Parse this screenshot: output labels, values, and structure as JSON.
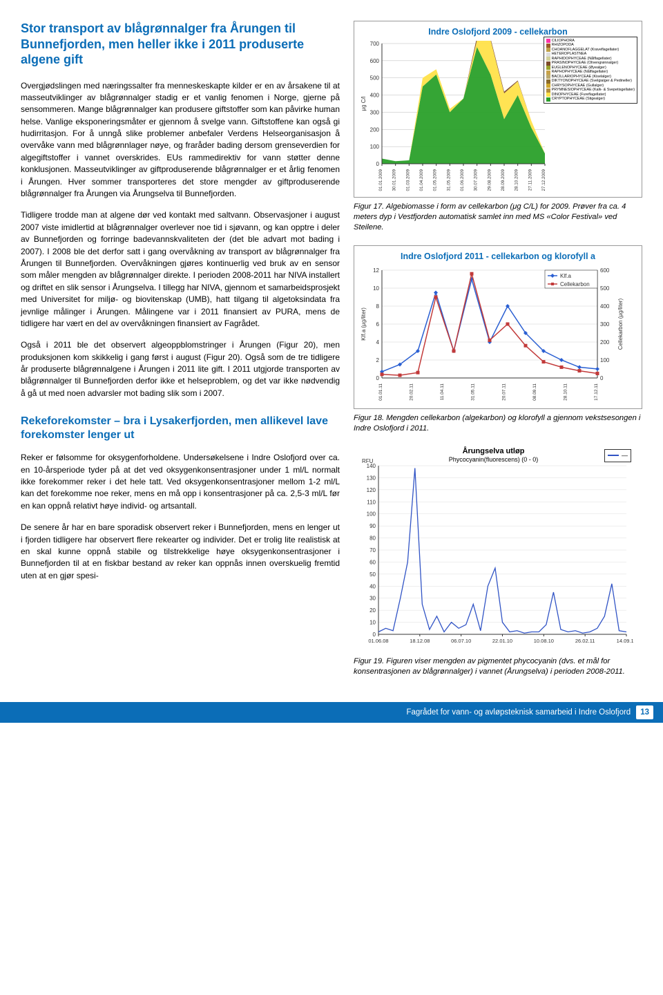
{
  "header": {
    "title": "Stor transport av blågrønnalger fra Årungen til Bunnefjorden, men heller ikke i 2011 produserte algene gift"
  },
  "paragraphs": {
    "p1": "Overgjødslingen med næringssalter fra menneskeskapte kilder er en av årsakene til at masseutviklinger av blågrønnalger stadig er et vanlig fenomen i Norge, gjerne på sensommeren. Mange blågrønnalger kan produsere giftstoffer som kan påvirke human helse. Vanlige eksponeringsmåter er gjennom å svelge vann. Giftstoffene kan også gi hudirritasjon. For å unngå slike problemer anbefaler Verdens Helseorganisasjon å overvåke vann med blågrønnlager nøye, og fraråder bading dersom grenseverdien for algegiftstoffer i vannet overskrides. EUs rammedirektiv for vann støtter denne konklusjonen. Masseutviklinger av giftproduserende blågrønnalger er et årlig fenomen i Årungen. Hver sommer transporteres det store mengder av giftproduserende blågrønnalger fra Årungen via Årungselva til Bunnefjorden.",
    "p2": "Tidligere trodde man at algene dør ved kontakt med saltvann. Observasjoner i august 2007 viste imidlertid at blågrønnalger overlever noe tid i sjøvann, og kan opptre i deler av Bunnefjorden og forringe badevannskvaliteten der (det ble advart mot bading i 2007). I 2008 ble det derfor satt i gang overvåkning av transport av blågrønnalger fra Årungen til Bunnefjorden. Overvåkningen gjøres kontinuerlig ved bruk av en sensor som måler mengden av blågrønnalger direkte. I perioden 2008-2011 har NIVA installert og driftet en slik sensor i Årungselva. I tillegg har NIVA, gjennom et samarbeidsprosjekt med Universitet for miljø- og biovitenskap (UMB), hatt tilgang til algetoksindata fra jevnlige målinger i Årungen. Målingene var i 2011 finansiert av PURA, mens de tidligere har vært en del av overvåkningen finansiert av Fagrådet.",
    "p3": "Også i 2011 ble det observert algeoppblomstringer i Årungen (Figur 20), men produksjonen kom skikkelig i gang først i august (Figur 20). Også som de tre tidligere år produserte blågrønnalgene i Årungen i 2011 lite gift. I 2011 utgjorde transporten av blågrønnalger til Bunnefjorden derfor ikke et helseproblem, og det var ikke nødvendig å gå ut med noen advarsler mot bading slik som i 2007."
  },
  "subheader": {
    "title": "Rekeforekomster – bra i Lysakerfjorden, men allikevel lave forekomster lenger ut"
  },
  "paragraphs2": {
    "p4": "Reker er følsomme for oksygenforholdene. Undersøkelsene i Indre Oslofjord over ca. en 10-årsperiode tyder på at det ved oksygenkonsentrasjoner under 1 ml/L normalt ikke forekommer reker i det hele tatt. Ved oksygenkonsentrasjoner mellom 1-2 ml/L kan det forekomme noe reker, mens en må opp i konsentrasjoner på ca. 2,5-3 ml/L før en kan oppnå relativt høye individ- og artsantall.",
    "p5": "De senere år har en bare sporadisk observert reker i Bunnefjorden, mens en lenger ut i fjorden tidligere har observert flere rekearter og individer. Det er trolig lite realistisk at en skal kunne oppnå stabile og tilstrekkelige høye oksygenkonsentrasjoner i Bunnefjorden til at en fiskbar bestand av reker kan oppnås innen overskuelig fremtid uten at en gjør spesi-"
  },
  "chart1": {
    "type": "area",
    "title": "Indre Oslofjord 2009 - cellekarbon",
    "ylabel": "μg C/l",
    "ylim": [
      0,
      700
    ],
    "ytick_step": 100,
    "x_labels": [
      "01.01.2009",
      "30.01.2009",
      "01.03.2009",
      "01.04.2009",
      "01.05.2009",
      "31.05.2009",
      "01.06.2009",
      "30.07.2009",
      "29.08.2009",
      "28.09.2009",
      "28.10.2009",
      "27.11.2009",
      "27.12.2009"
    ],
    "legend": [
      {
        "label": "CILIOPHORA",
        "color": "#ff33a8"
      },
      {
        "label": "RHIZOPODA",
        "color": "#9a5a2a"
      },
      {
        "label": "CHOANOFLAGGELAT (Kraveflagellater)",
        "color": "#bfa14a"
      },
      {
        "label": "HETEROPLASTNEA",
        "color": "#dddddd"
      },
      {
        "label": "RAPHIDOPHYCEAE (Nålflagellater)",
        "color": "#d1d19a"
      },
      {
        "label": "PRASINOPHYCEAE (Olivengrønnalger)",
        "color": "#7d4b2a"
      },
      {
        "label": "EUGLENOPHYCEAE (Øyealger)",
        "color": "#9aa32b"
      },
      {
        "label": "RAPHOPHYCEAE (Nålflagellater)",
        "color": "#c7a24a"
      },
      {
        "label": "BACILLARIOPHYCEAE (Kiselalger)",
        "color": "#bba96e"
      },
      {
        "label": "DIKTYONOPHYCEAE (Svelgialger & Pedineller)",
        "color": "#8a6a2a"
      },
      {
        "label": "CHRYSOPHYCEAE (Gullalger)",
        "color": "#cfa72d"
      },
      {
        "label": "PRYMNESIOPHYCEAE (Kalk- & Svepetisgellater)",
        "color": "#b38f3f"
      },
      {
        "label": "DINOPHYCEAE (Fureflagellater)",
        "color": "#ffe24a"
      },
      {
        "label": "CRYPTOPHYCEAE (Stigealger)",
        "color": "#2aa02a"
      }
    ],
    "series": [
      {
        "name": "green",
        "color": "#2aa02a",
        "values": [
          30,
          15,
          20,
          450,
          520,
          300,
          380,
          680,
          520,
          260,
          400,
          210,
          60
        ]
      },
      {
        "name": "yellow",
        "color": "#ffe24a",
        "values": [
          0,
          0,
          0,
          50,
          30,
          20,
          0,
          40,
          200,
          150,
          80,
          40,
          0
        ]
      },
      {
        "name": "brown",
        "color": "#7d4b2a",
        "values": [
          0,
          0,
          0,
          0,
          0,
          0,
          0,
          20,
          10,
          10,
          5,
          0,
          0
        ]
      }
    ],
    "background_color": "#ffffff",
    "grid_color": "#b8b8b8",
    "label_fontsize": 8
  },
  "caption1": "Figur 17. Algebiomasse i form av cellekarbon (μg C/L) for 2009. Prøver fra ca. 4 meters dyp i Vestfjorden automatisk samlet inn med MS «Color Festival» ved Steilene.",
  "chart2": {
    "type": "line-dual-axis",
    "title": "Indre Oslofjord 2011 - cellekarbon og klorofyll a",
    "ylabel_left": "Klf.a (μg/liter)",
    "ylabel_right": "Cellekarbon (μg/liter)",
    "ylim_left": [
      0,
      12
    ],
    "ytick_left": 2,
    "ylim_right": [
      0,
      600
    ],
    "ytick_right": 100,
    "x_labels": [
      "01.01.11",
      "20.02.11",
      "11.04.11",
      "31.05.11",
      "20.07.11",
      "08.09.11",
      "28.10.11",
      "17.12.11"
    ],
    "series": [
      {
        "name": "Klf.a",
        "color": "#2a5fd2",
        "values": [
          0.7,
          1.5,
          3,
          9.5,
          3,
          11,
          4,
          8,
          5,
          3,
          2,
          1.2,
          1
        ]
      },
      {
        "name": "Cellekarbon",
        "color": "#c23a3a",
        "values": [
          20,
          15,
          30,
          450,
          150,
          580,
          210,
          300,
          180,
          90,
          60,
          40,
          25
        ]
      }
    ],
    "background_color": "#ffffff",
    "grid_color": "#cfcfcf",
    "label_fontsize": 8
  },
  "caption2": "Figur 18. Mengden cellekarbon (algekarbon) og klorofyll a gjennom vekstsesongen i Indre Oslofjord i 2011.",
  "chart3": {
    "type": "line",
    "title": "Årungselva utløp",
    "subtitle": "Phycocyanin(fluorescens) (0 - 0)",
    "ylabel": "RFU",
    "ylim": [
      0,
      140
    ],
    "ytick_step": 10,
    "x_labels": [
      "01.06.08",
      "18.12.08",
      "06.07.10",
      "22.01.10",
      "10.08.10",
      "26.02.11",
      "14.09.11"
    ],
    "series_color": "#3053c5",
    "values": [
      2,
      5,
      3,
      30,
      60,
      138,
      25,
      4,
      15,
      2,
      10,
      5,
      8,
      25,
      3,
      40,
      55,
      10,
      2,
      3,
      1,
      2,
      2,
      8,
      35,
      4,
      2,
      3,
      1,
      2,
      5,
      15,
      42,
      3,
      2
    ],
    "background_color": "#ffffff",
    "grid_color": "#dcdcdc",
    "label_fontsize": 8
  },
  "caption3": "Figur 19. Figuren viser mengden av pigmentet phycocyanin (dvs. et mål for konsentrasjonen av blågrønnalger) i vannet (Årungselva) i perioden 2008-2011.",
  "footer": {
    "text": "Fagrådet for vann- og avløpsteknisk samarbeid i Indre Oslofjord",
    "page": "13"
  }
}
